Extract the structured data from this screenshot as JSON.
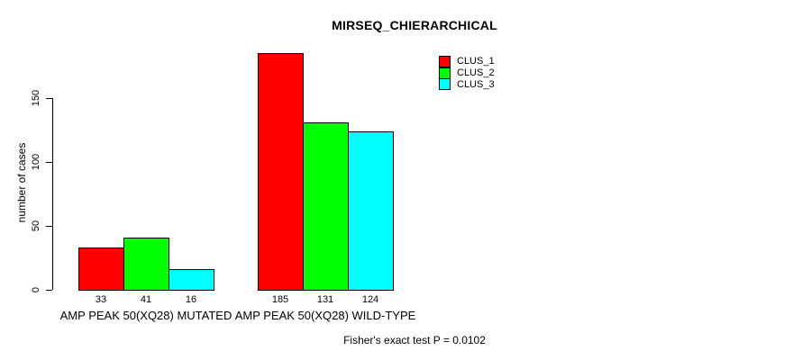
{
  "page": {
    "background_color": "#ffffff",
    "text_color": "#000000"
  },
  "chart_data": {
    "type": "bar",
    "title": "MIRSEQ_CHIERARCHICAL",
    "xlabel": "",
    "ylabel": "number of cases",
    "categories": [
      "AMP PEAK 50(XQ28) MUTATED",
      "AMP PEAK 50(XQ28) WILD-TYPE"
    ],
    "series": [
      {
        "name": "CLUS_1",
        "color": "#ff0000",
        "values": [
          33,
          185
        ]
      },
      {
        "name": "CLUS_2",
        "color": "#00ff00",
        "values": [
          41,
          131
        ]
      },
      {
        "name": "CLUS_3",
        "color": "#00ffff",
        "values": [
          16,
          124
        ]
      }
    ],
    "yticks": [
      0,
      50,
      100,
      150
    ],
    "ylim": [
      0,
      185
    ],
    "grid": false,
    "bar_value_labels": true,
    "bar_border_color": "#000000",
    "axis_color": "#000000",
    "legend": {
      "position": "top-right",
      "entries": [
        "CLUS_1",
        "CLUS_2",
        "CLUS_3"
      ]
    },
    "annotation": "Fisher's exact test P = 0.0102"
  }
}
